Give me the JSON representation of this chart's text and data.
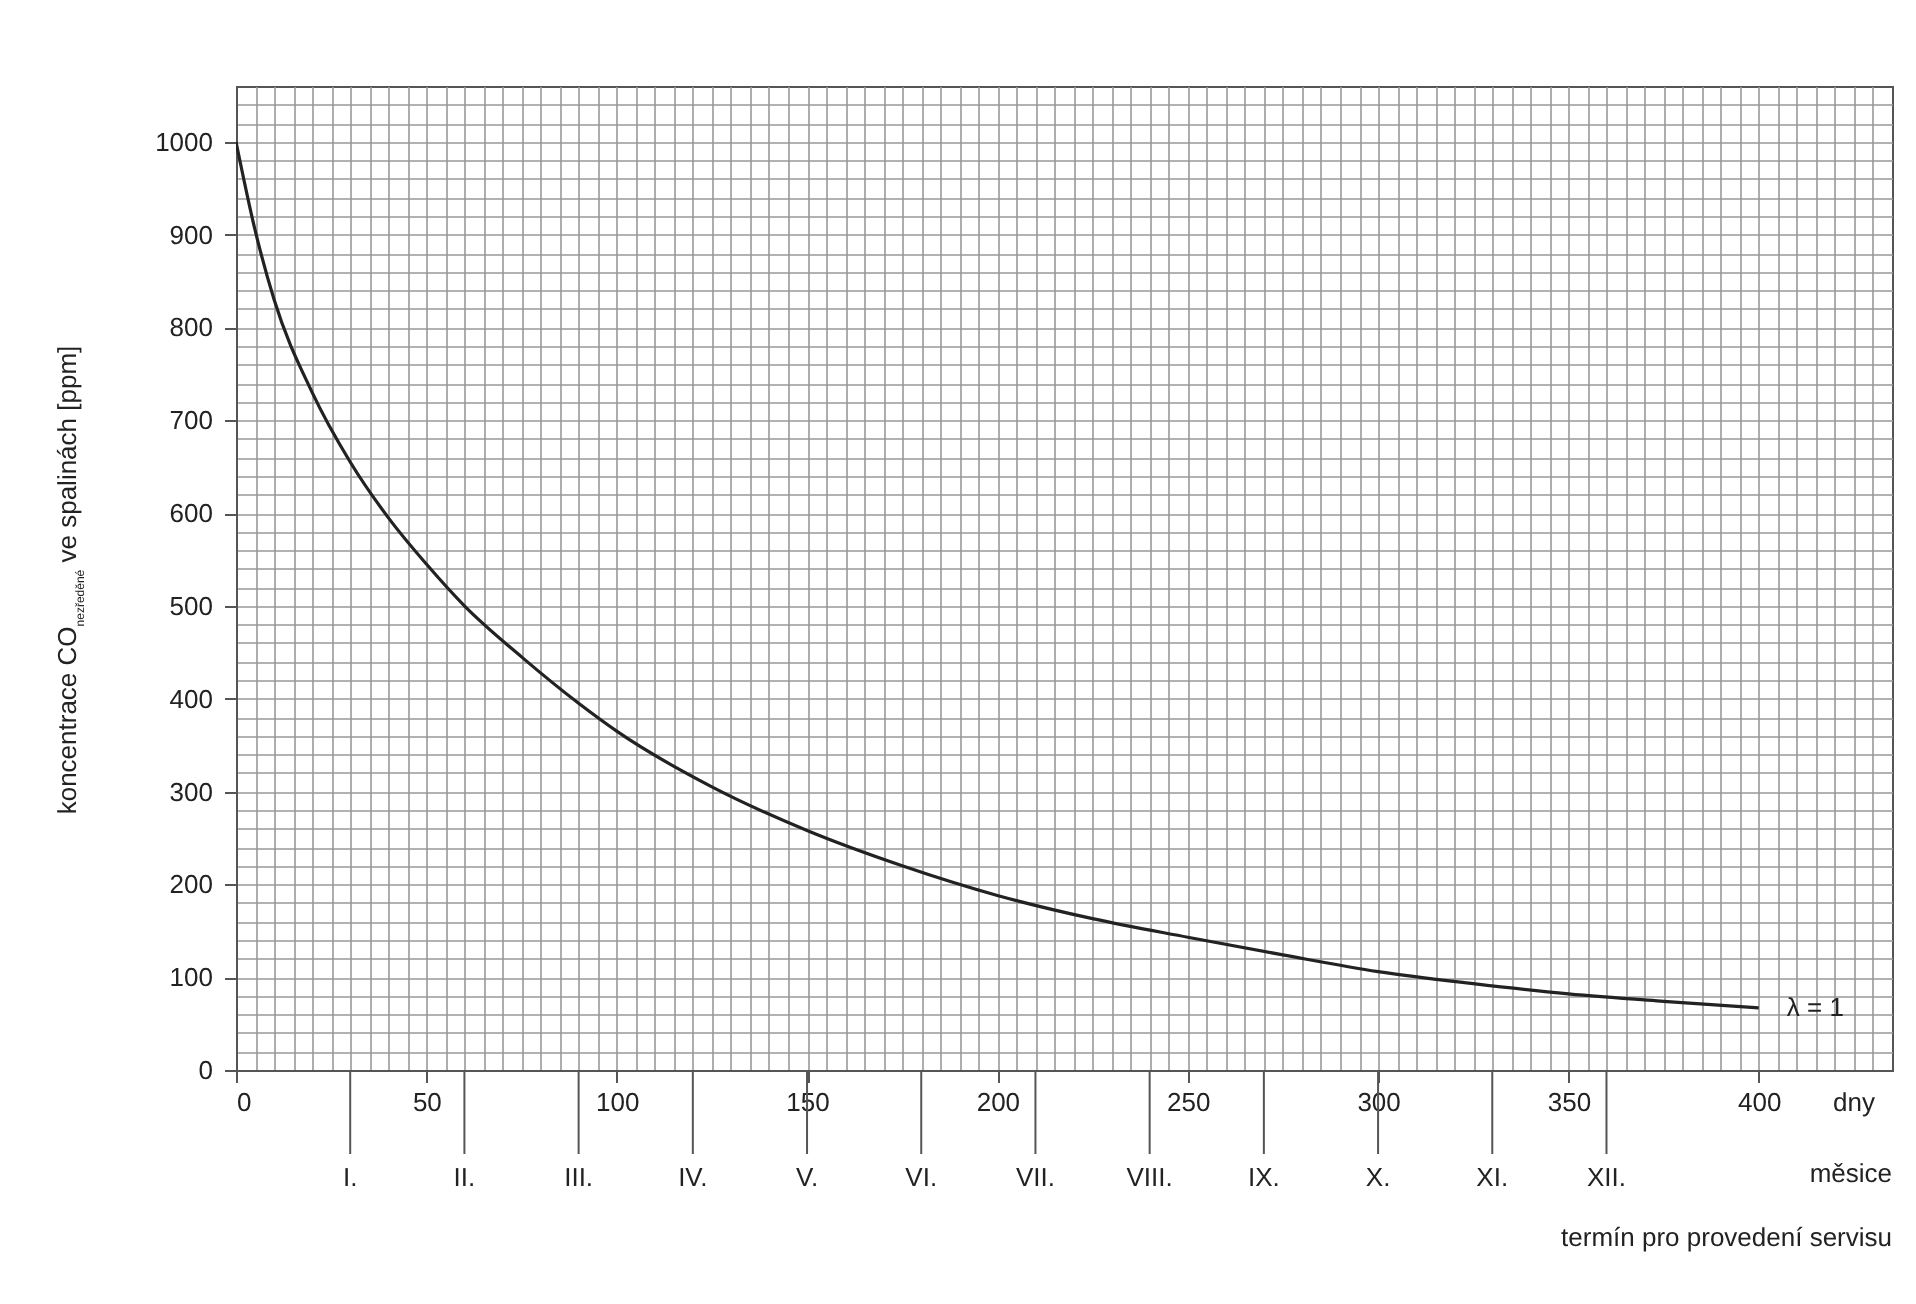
{
  "chart_data": {
    "type": "line",
    "xlabel": "dny",
    "ylabel": "koncentrace CO$_{nezředěné}$ ve spalinách [ppm]",
    "annotations": [
      "měsice",
      "termín pro provedení servisu"
    ],
    "series": [
      {
        "name": "λ = 1",
        "color": "#222222",
        "x": [
          0,
          5,
          10,
          20,
          30,
          40,
          50,
          60,
          75,
          90,
          100,
          125,
          150,
          175,
          200,
          225,
          250,
          275,
          300,
          325,
          350,
          375,
          400
        ],
        "values": [
          1000,
          905,
          830,
          730,
          655,
          595,
          545,
          500,
          445,
          395,
          365,
          305,
          258,
          220,
          188,
          163,
          143,
          124,
          106,
          93,
          82,
          74,
          67
        ]
      }
    ],
    "xlim": [
      0,
      435
    ],
    "ylim": [
      0,
      1060
    ],
    "xticks": [
      0,
      {
        "value": 5,
        "label": null
      },
      {
        "value": 10,
        "label": null
      },
      {
        "value": 15,
        "label": null
      },
      {
        "value": 20,
        "label": null
      },
      {
        "value": 25,
        "label": null
      },
      {
        "value": 30,
        "label": null
      },
      {
        "value": 35,
        "label": null
      },
      {
        "value": 40,
        "label": null
      },
      {
        "value": 45,
        "label": null
      },
      50,
      {
        "value": 55,
        "label": null
      },
      {
        "value": 60,
        "label": null
      },
      {
        "value": 65,
        "label": null
      },
      {
        "value": 70,
        "label": null
      },
      {
        "value": 75,
        "label": null
      },
      {
        "value": 80,
        "label": null
      },
      {
        "value": 85,
        "label": null
      },
      {
        "value": 90,
        "label": null
      },
      {
        "value": 95,
        "label": null
      },
      100,
      {
        "value": 105,
        "label": null
      },
      {
        "value": 110,
        "label": null
      },
      {
        "value": 115,
        "label": null
      },
      {
        "value": 120,
        "label": null
      },
      {
        "value": 125,
        "label": null
      },
      {
        "value": 130,
        "label": null
      },
      {
        "value": 135,
        "label": null
      },
      {
        "value": 140,
        "label": null
      },
      {
        "value": 145,
        "label": null
      },
      150,
      {
        "value": 155,
        "label": null
      },
      {
        "value": 160,
        "label": null
      },
      {
        "value": 165,
        "label": null
      },
      {
        "value": 170,
        "label": null
      },
      {
        "value": 175,
        "label": null
      },
      {
        "value": 180,
        "label": null
      },
      {
        "value": 185,
        "label": null
      },
      {
        "value": 190,
        "label": null
      },
      {
        "value": 195,
        "label": null
      },
      200,
      {
        "value": 205,
        "label": null
      },
      {
        "value": 210,
        "label": null
      },
      {
        "value": 215,
        "label": null
      },
      {
        "value": 220,
        "label": null
      },
      {
        "value": 225,
        "label": null
      },
      {
        "value": 230,
        "label": null
      },
      {
        "value": 235,
        "label": null
      },
      {
        "value": 240,
        "label": null
      },
      {
        "value": 245,
        "label": null
      },
      250,
      {
        "value": 255,
        "label": null
      },
      {
        "value": 260,
        "label": null
      },
      {
        "value": 265,
        "label": null
      },
      {
        "value": 270,
        "label": null
      },
      {
        "value": 275,
        "label": null
      },
      {
        "value": 280,
        "label": null
      },
      {
        "value": 285,
        "label": null
      },
      {
        "value": 290,
        "label": null
      },
      {
        "value": 295,
        "label": null
      },
      300,
      {
        "value": 305,
        "label": null
      },
      {
        "value": 310,
        "label": null
      },
      {
        "value": 315,
        "label": null
      },
      {
        "value": 320,
        "label": null
      },
      {
        "value": 325,
        "label": null
      },
      {
        "value": 330,
        "label": null
      },
      {
        "value": 335,
        "label": null
      },
      {
        "value": 340,
        "label": null
      },
      {
        "value": 345,
        "label": null
      },
      350,
      {
        "value": 355,
        "label": null
      },
      {
        "value": 360,
        "label": null
      },
      {
        "value": 365,
        "label": null
      },
      {
        "value": 370,
        "label": null
      },
      {
        "value": 375,
        "label": null
      },
      {
        "value": 380,
        "label": null
      },
      {
        "value": 385,
        "label": null
      },
      {
        "value": 390,
        "label": null
      },
      {
        "value": 395,
        "label": null
      },
      400,
      {
        "value": 405,
        "label": null
      },
      {
        "value": 410,
        "label": null
      },
      {
        "value": 415,
        "label": null
      },
      {
        "value": 420,
        "label": null
      },
      {
        "value": 425,
        "label": null
      },
      {
        "value": 430,
        "label": null
      }
    ],
    "yticks": [
      0,
      {
        "value": 20,
        "label": null
      },
      {
        "value": 40,
        "label": null
      },
      {
        "value": 60,
        "label": null
      },
      {
        "value": 80,
        "label": null
      },
      100,
      {
        "value": 120,
        "label": null
      },
      {
        "value": 140,
        "label": null
      },
      {
        "value": 160,
        "label": null
      },
      {
        "value": 180,
        "label": null
      },
      200,
      {
        "value": 220,
        "label": null
      },
      {
        "value": 240,
        "label": null
      },
      {
        "value": 260,
        "label": null
      },
      {
        "value": 280,
        "label": null
      },
      300,
      {
        "value": 320,
        "label": null
      },
      {
        "value": 340,
        "label": null
      },
      {
        "value": 360,
        "label": null
      },
      {
        "value": 380,
        "label": null
      },
      400,
      {
        "value": 420,
        "label": null
      },
      {
        "value": 440,
        "label": null
      },
      {
        "value": 460,
        "label": null
      },
      {
        "value": 480,
        "label": null
      },
      500,
      {
        "value": 520,
        "label": null
      },
      {
        "value": 540,
        "label": null
      },
      {
        "value": 560,
        "label": null
      },
      {
        "value": 580,
        "label": null
      },
      600,
      {
        "value": 620,
        "label": null
      },
      {
        "value": 640,
        "label": null
      },
      {
        "value": 660,
        "label": null
      },
      {
        "value": 680,
        "label": null
      },
      700,
      {
        "value": 720,
        "label": null
      },
      {
        "value": 740,
        "label": null
      },
      {
        "value": 760,
        "label": null
      },
      {
        "value": 780,
        "label": null
      },
      800,
      {
        "value": 820,
        "label": null
      },
      {
        "value": 840,
        "label": null
      },
      {
        "value": 860,
        "label": null
      },
      {
        "value": 880,
        "label": null
      },
      900,
      {
        "value": 920,
        "label": null
      },
      {
        "value": 940,
        "label": null
      },
      {
        "value": 960,
        "label": null
      },
      {
        "value": 980,
        "label": null
      },
      1000,
      {
        "value": 1020,
        "label": null
      },
      {
        "value": 1040,
        "label": null
      }
    ],
    "ref_lines": [
      {
        "axis": "x",
        "value": 30,
        "label": "I.",
        "color": "#555555"
      },
      {
        "axis": "x",
        "value": 60,
        "label": "II.",
        "color": "#555555"
      },
      {
        "axis": "x",
        "value": 90,
        "label": "III.",
        "color": "#555555"
      },
      {
        "axis": "x",
        "value": 120,
        "label": "IV.",
        "color": "#555555"
      },
      {
        "axis": "x",
        "value": 150,
        "label": "V.",
        "color": "#555555"
      },
      {
        "axis": "x",
        "value": 180,
        "label": "VI.",
        "color": "#555555"
      },
      {
        "axis": "x",
        "value": 210,
        "label": "VII.",
        "color": "#555555"
      },
      {
        "axis": "x",
        "value": 240,
        "label": "VIII.",
        "color": "#555555"
      },
      {
        "axis": "x",
        "value": 270,
        "label": "IX.",
        "color": "#555555"
      },
      {
        "axis": "x",
        "value": 300,
        "label": "X.",
        "color": "#555555"
      },
      {
        "axis": "x",
        "value": 330,
        "label": "XI.",
        "color": "#555555"
      },
      {
        "axis": "x",
        "value": 360,
        "label": "XII.",
        "color": "#555555"
      }
    ],
    "grid": true,
    "line_style": "solid"
  }
}
